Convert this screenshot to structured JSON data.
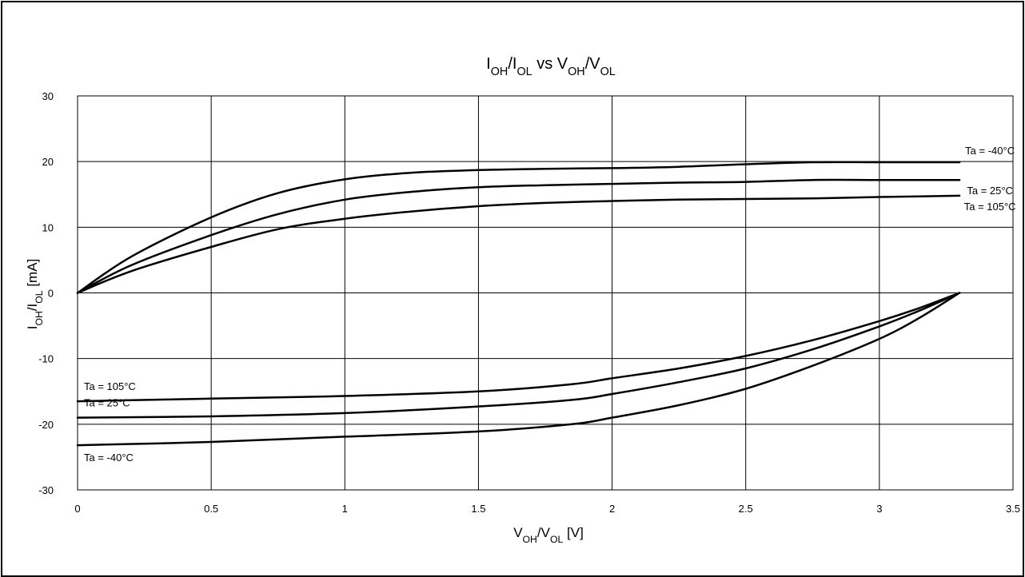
{
  "chart_data": {
    "type": "line",
    "title": {
      "parts": [
        {
          "text": "I",
          "sub": false
        },
        {
          "text": "OH",
          "sub": true
        },
        {
          "text": "/I",
          "sub": false
        },
        {
          "text": "OL",
          "sub": true
        },
        {
          "text": " vs V",
          "sub": false
        },
        {
          "text": "OH",
          "sub": true
        },
        {
          "text": "/V",
          "sub": false
        },
        {
          "text": "OL",
          "sub": true
        }
      ]
    },
    "xlabel": {
      "parts": [
        {
          "text": "V",
          "sub": false
        },
        {
          "text": "OH",
          "sub": true
        },
        {
          "text": "/V",
          "sub": false
        },
        {
          "text": "OL",
          "sub": true
        },
        {
          "text": " [V]",
          "sub": false
        }
      ]
    },
    "ylabel": {
      "parts": [
        {
          "text": "I",
          "sub": false
        },
        {
          "text": "OH",
          "sub": true
        },
        {
          "text": "/I",
          "sub": false
        },
        {
          "text": "OL",
          "sub": true
        },
        {
          "text": " [mA]",
          "sub": false
        }
      ]
    },
    "xlim": [
      0,
      3.5
    ],
    "ylim": [
      -30,
      30
    ],
    "xticks": [
      0,
      0.5,
      1,
      1.5,
      2,
      2.5,
      3,
      3.5
    ],
    "xtick_labels": [
      "0",
      "0.5",
      "1",
      "1.5",
      "2",
      "2.5",
      "3",
      "3.5"
    ],
    "yticks": [
      30,
      20,
      10,
      0,
      -10,
      -20,
      -30
    ],
    "ytick_labels": [
      "30",
      "20",
      "10",
      "0",
      "-10",
      "-20",
      "-30"
    ],
    "grid": true,
    "series": [
      {
        "name": "Ta = -40°C",
        "region": "IOH",
        "x": [
          0,
          0.2,
          0.5,
          0.75,
          1,
          1.25,
          1.5,
          1.75,
          2,
          2.25,
          2.5,
          2.75,
          3,
          3.3
        ],
        "y": [
          0,
          5.5,
          11.5,
          15.2,
          17.3,
          18.3,
          18.7,
          18.9,
          19.0,
          19.2,
          19.6,
          19.9,
          19.9,
          19.9
        ]
      },
      {
        "name": "Ta = 25°C",
        "region": "IOH",
        "x": [
          0,
          0.2,
          0.5,
          0.75,
          1,
          1.25,
          1.5,
          1.75,
          2,
          2.25,
          2.5,
          2.75,
          3,
          3.3
        ],
        "y": [
          0,
          4.2,
          8.8,
          12.0,
          14.2,
          15.4,
          16.1,
          16.4,
          16.6,
          16.8,
          16.9,
          17.2,
          17.2,
          17.2
        ]
      },
      {
        "name": "Ta = 105°C",
        "region": "IOH",
        "x": [
          0,
          0.2,
          0.5,
          0.75,
          1,
          1.25,
          1.5,
          1.75,
          2,
          2.25,
          2.5,
          2.75,
          3,
          3.3
        ],
        "y": [
          0,
          3.3,
          7.0,
          9.7,
          11.3,
          12.4,
          13.2,
          13.7,
          14.0,
          14.2,
          14.3,
          14.4,
          14.6,
          14.8
        ]
      },
      {
        "name": "Ta = 105°C",
        "region": "IOL",
        "x": [
          0,
          0.5,
          1,
          1.5,
          1.85,
          2.0,
          2.25,
          2.5,
          2.75,
          3.0,
          3.15,
          3.3
        ],
        "y": [
          -16.5,
          -16.1,
          -15.7,
          -15.0,
          -13.9,
          -13.0,
          -11.5,
          -9.6,
          -7.2,
          -4.3,
          -2.3,
          0
        ]
      },
      {
        "name": "Ta = 25°C",
        "region": "IOL",
        "x": [
          0,
          0.5,
          1,
          1.5,
          1.85,
          2.0,
          2.25,
          2.5,
          2.75,
          3.0,
          3.15,
          3.3
        ],
        "y": [
          -19.0,
          -18.8,
          -18.3,
          -17.3,
          -16.3,
          -15.4,
          -13.6,
          -11.5,
          -8.6,
          -5.1,
          -2.7,
          0
        ]
      },
      {
        "name": "Ta = -40°C",
        "region": "IOL",
        "x": [
          0,
          0.5,
          1,
          1.5,
          1.85,
          2.0,
          2.25,
          2.5,
          2.75,
          3.0,
          3.15,
          3.3
        ],
        "y": [
          -23.2,
          -22.7,
          -21.9,
          -21.1,
          -20.0,
          -19.0,
          -17.1,
          -14.6,
          -11.1,
          -7.0,
          -3.8,
          0
        ]
      }
    ]
  }
}
